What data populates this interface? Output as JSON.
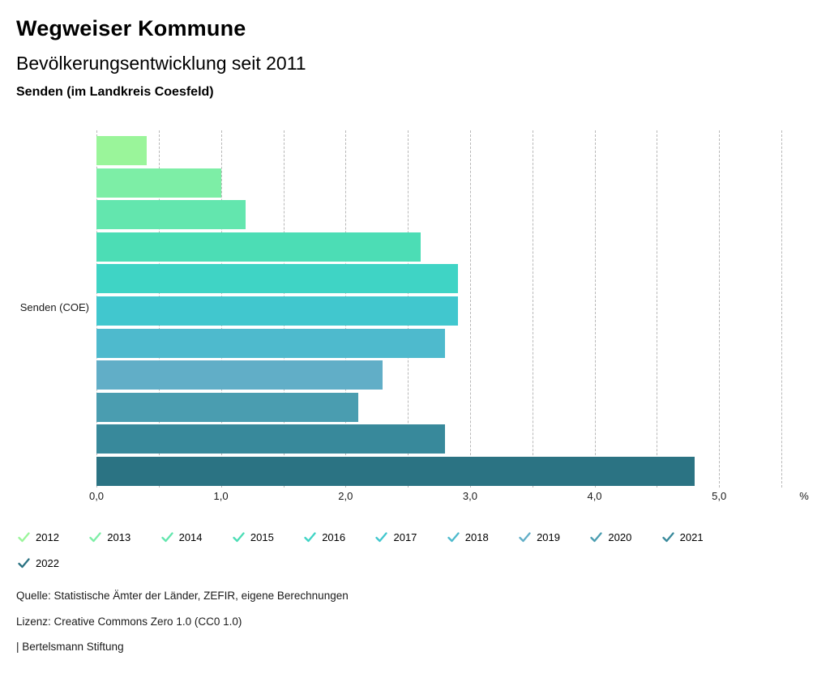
{
  "header": {
    "title": "Wegweiser Kommune",
    "subtitle": "Bevölkerungsentwicklung seit 2011",
    "region": "Senden (im Landkreis Coesfeld)"
  },
  "chart_data": {
    "type": "bar",
    "orientation": "horizontal",
    "group_label": "Senden (COE)",
    "unit": "%",
    "xlim": [
      0,
      5.5
    ],
    "gridline_step": 0.5,
    "x_ticks": [
      "0,0",
      "1,0",
      "2,0",
      "3,0",
      "4,0",
      "5,0"
    ],
    "grid": true,
    "legend_position": "bottom",
    "series": [
      {
        "name": "2012",
        "value": 0.4,
        "color": "#9AF59A"
      },
      {
        "name": "2013",
        "value": 1.0,
        "color": "#7DEEA6"
      },
      {
        "name": "2014",
        "value": 1.2,
        "color": "#63E6AE"
      },
      {
        "name": "2015",
        "value": 2.6,
        "color": "#4CDDB5"
      },
      {
        "name": "2016",
        "value": 2.9,
        "color": "#3FD4C5"
      },
      {
        "name": "2017",
        "value": 2.9,
        "color": "#41C7CE"
      },
      {
        "name": "2018",
        "value": 2.8,
        "color": "#4EBACD"
      },
      {
        "name": "2019",
        "value": 2.3,
        "color": "#61AEC7"
      },
      {
        "name": "2020",
        "value": 2.1,
        "color": "#4A9DB0"
      },
      {
        "name": "2021",
        "value": 2.8,
        "color": "#38899B"
      },
      {
        "name": "2022",
        "value": 4.8,
        "color": "#2B7383"
      }
    ]
  },
  "legend": {
    "row_split": 10
  },
  "footer": {
    "source": "Quelle: Statistische Ämter der Länder, ZEFIR, eigene Berechnungen",
    "license": "Lizenz: Creative Commons Zero 1.0 (CC0 1.0)",
    "attribution": "| Bertelsmann Stiftung"
  }
}
